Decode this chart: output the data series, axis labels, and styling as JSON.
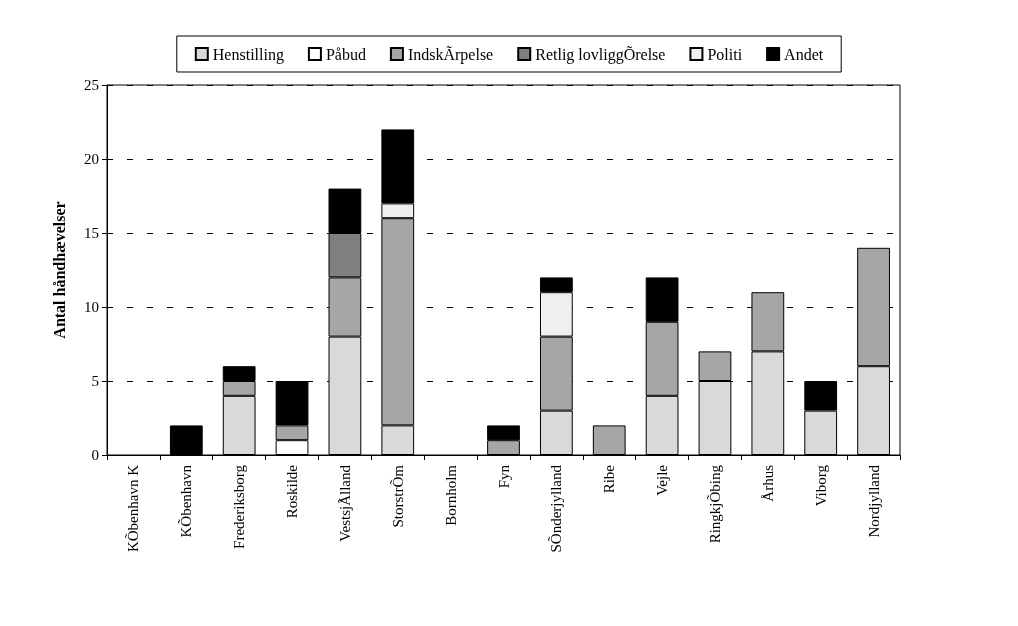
{
  "chart_data": {
    "type": "bar",
    "stacked": true,
    "ylabel": "Antal håndhævelser",
    "categories": [
      "KÕbenhavn K",
      "KÕbenhavn",
      "Frederiksborg",
      "Roskilde",
      "VestsjÃlland",
      "StorstrÕm",
      "Bornholm",
      "Fyn",
      "SÕnderjylland",
      "Ribe",
      "Vejle",
      "RingkjÕbing",
      "Århus",
      "Viborg",
      "Nordjylland"
    ],
    "series": [
      {
        "name": "Henstilling",
        "color": "#d9d9d9",
        "values": [
          0,
          0,
          4,
          0,
          8,
          2,
          0,
          0,
          3,
          0,
          4,
          5,
          7,
          3,
          6
        ]
      },
      {
        "name": "Påbud",
        "color": "#ffffff",
        "values": [
          0,
          0,
          0,
          1,
          0,
          0,
          0,
          0,
          0,
          0,
          0,
          0,
          0,
          0,
          0
        ]
      },
      {
        "name": "IndskÃrpelse",
        "color": "#a6a6a6",
        "values": [
          0,
          0,
          1,
          1,
          4,
          14,
          0,
          1,
          5,
          2,
          5,
          2,
          4,
          0,
          8
        ]
      },
      {
        "name": "Retlig lovliggÕrelse",
        "color": "#7f7f7f",
        "values": [
          0,
          0,
          0,
          0,
          3,
          0,
          0,
          0,
          0,
          0,
          0,
          0,
          0,
          0,
          0
        ]
      },
      {
        "name": "Politi",
        "color": "#efefef",
        "values": [
          0,
          0,
          0,
          0,
          0,
          1,
          0,
          0,
          3,
          0,
          0,
          0,
          0,
          0,
          0
        ]
      },
      {
        "name": "Andet",
        "color": "#000000",
        "values": [
          0,
          2,
          1,
          3,
          3,
          5,
          0,
          1,
          1,
          0,
          3,
          0,
          0,
          2,
          0
        ]
      }
    ],
    "ylim": [
      0,
      25
    ],
    "yticks": [
      0,
      5,
      10,
      15,
      20,
      25
    ],
    "grid": "y",
    "legend": "top"
  }
}
